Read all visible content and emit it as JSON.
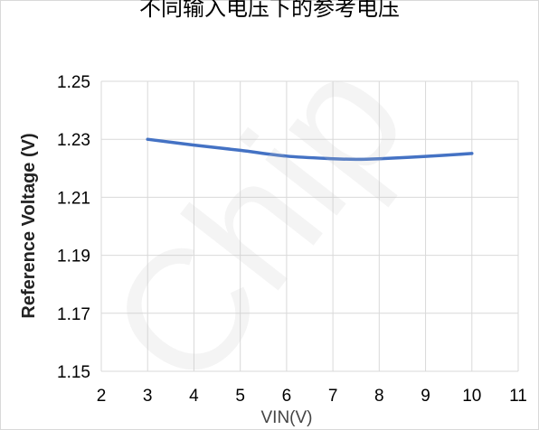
{
  "chart_data": {
    "type": "line",
    "title": "不同输入电压下的参考电压",
    "xlabel": "VIN(V)",
    "ylabel": "Reference Voltage (V)",
    "xlim": [
      2,
      11
    ],
    "ylim": [
      1.15,
      1.25
    ],
    "x_ticks": [
      "2",
      "3",
      "4",
      "5",
      "6",
      "7",
      "8",
      "9",
      "10",
      "11"
    ],
    "y_ticks": [
      "1.15",
      "1.17",
      "1.19",
      "1.21",
      "1.23",
      "1.25"
    ],
    "grid": true,
    "legend": "none",
    "series": [
      {
        "color": "#4472C4",
        "x": [
          3,
          4,
          5,
          6,
          7,
          7.5,
          8,
          9,
          10
        ],
        "y": [
          1.23,
          1.228,
          1.2262,
          1.2242,
          1.2233,
          1.2231,
          1.2233,
          1.2241,
          1.2251
        ]
      }
    ],
    "watermark": "Chip"
  }
}
